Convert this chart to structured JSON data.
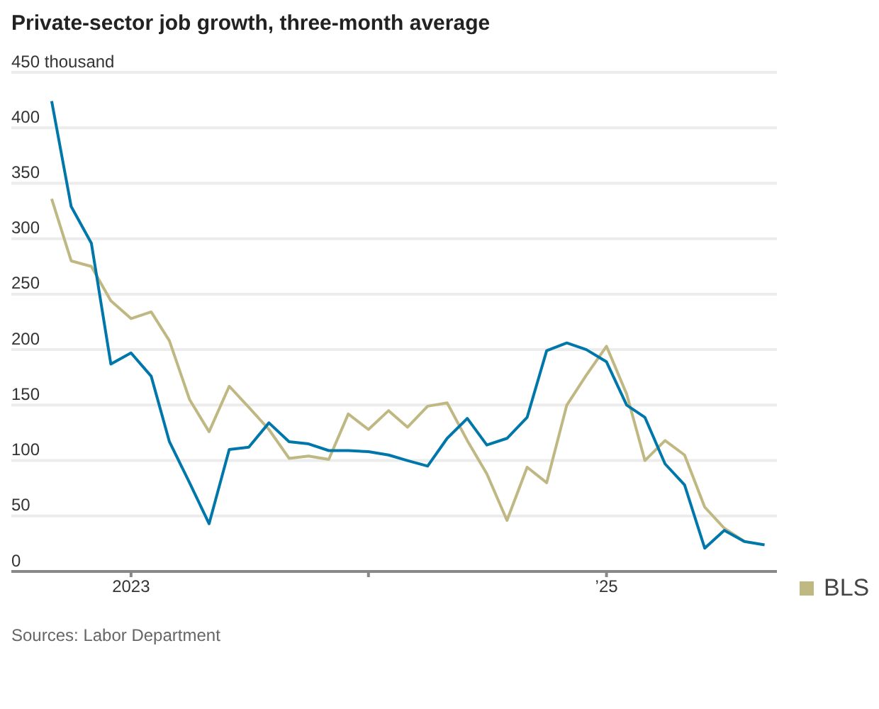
{
  "chart_data": {
    "type": "line",
    "title": "Private-sector job growth, three-month average",
    "annotations": [
      "Sources: Labor Department"
    ],
    "x": [
      "2022-09",
      "2022-10",
      "2022-11",
      "2022-12",
      "2023-01",
      "2023-02",
      "2023-03",
      "2023-04",
      "2023-05",
      "2023-06",
      "2023-07",
      "2023-08",
      "2023-09",
      "2023-10",
      "2023-11",
      "2023-12",
      "2024-01",
      "2024-02",
      "2024-03",
      "2024-04",
      "2024-05",
      "2024-06",
      "2024-07",
      "2024-08",
      "2024-09",
      "2024-10",
      "2024-11",
      "2024-12",
      "2025-01",
      "2025-02",
      "2025-03",
      "2025-04",
      "2025-05",
      "2025-06",
      "2025-07",
      "2025-08",
      "2025-09"
    ],
    "series": [
      {
        "name": "BLS",
        "color": "#c0b883",
        "values": [
          336,
          280,
          275,
          244,
          228,
          234,
          208,
          155,
          126,
          167,
          148,
          128,
          102,
          104,
          101,
          142,
          128,
          145,
          130,
          149,
          152,
          118,
          88,
          46,
          94,
          80,
          150,
          177,
          203,
          160,
          100,
          118,
          105,
          58,
          39,
          27,
          null
        ]
      },
      {
        "color": "#0077aa",
        "values": [
          424,
          329,
          296,
          187,
          197,
          176,
          117,
          80,
          43,
          110,
          112,
          134,
          117,
          115,
          109,
          109,
          108,
          105,
          100,
          95,
          120,
          138,
          114,
          120,
          139,
          199,
          206,
          200,
          189,
          150,
          139,
          97,
          78,
          21,
          37,
          27,
          24
        ]
      }
    ],
    "xlim": [
      "2022-07-01",
      "2025-09-20"
    ],
    "xticks": [
      {
        "value": "2023-01",
        "label": "2023"
      },
      {
        "value": "2024-01",
        "label": null
      },
      {
        "value": "2025-01",
        "label": "’25"
      }
    ],
    "ylim": [
      0,
      450
    ],
    "yticks": [
      0,
      50,
      100,
      150,
      200,
      250,
      300,
      350,
      400,
      {
        "value": 450,
        "label": "450 thousand"
      }
    ],
    "grid": "y",
    "legend": "bottom right",
    "line_style": "solid",
    "marker": "none"
  }
}
